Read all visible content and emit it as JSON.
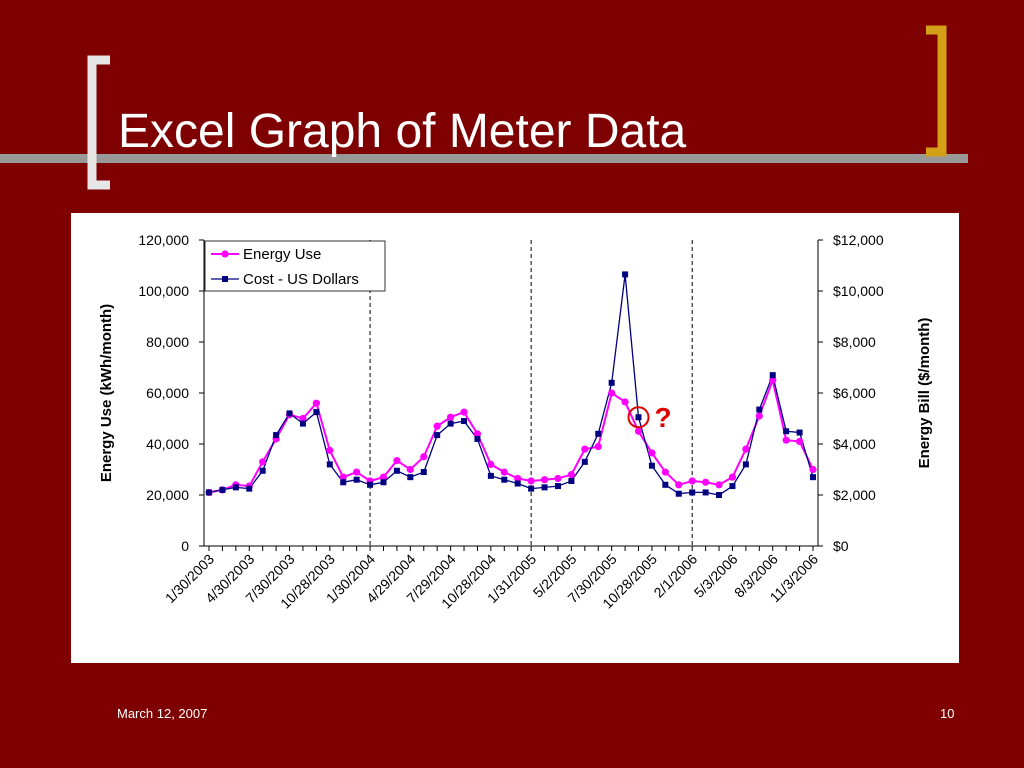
{
  "slide": {
    "title": "Excel Graph of Meter Data",
    "footer_date": "March 12, 2007",
    "page_number": "10"
  },
  "colors": {
    "background": "#7f0000",
    "bracket_left": "#e6e6e6",
    "bracket_right": "#d4a017",
    "energy_series": "#ff00ff",
    "cost_series": "#000080",
    "annotation": "#e00000"
  },
  "annotation": {
    "text": "?",
    "target_series": "Cost - US Dollars",
    "target_index": 32
  },
  "chart_data": {
    "type": "line",
    "left_axis": {
      "label": "Energy Use (kWh/month)",
      "min": 0,
      "max": 120000,
      "tick_labels": [
        "0",
        "20,000",
        "40,000",
        "60,000",
        "80,000",
        "100,000",
        "120,000"
      ]
    },
    "right_axis": {
      "label": "Energy Bill ($/month)",
      "min": 0,
      "max": 12000,
      "tick_labels": [
        "$0",
        "$2,000",
        "$4,000",
        "$6,000",
        "$8,000",
        "$10,000",
        "$12,000"
      ]
    },
    "x_tick_labels": [
      "1/30/2003",
      "4/30/2003",
      "7/30/2003",
      "10/28/2003",
      "1/30/2004",
      "4/29/2004",
      "7/29/2004",
      "10/28/2004",
      "1/31/2005",
      "5/2/2005",
      "7/30/2005",
      "10/28/2005",
      "2/1/2006",
      "5/3/2006",
      "8/3/2006",
      "11/3/2006"
    ],
    "x_range": [
      "1/30/2003",
      "12/2006"
    ],
    "year_dividers": [
      "1/30/2004",
      "1/31/2005",
      "2/1/2006"
    ],
    "legend": {
      "position": "top-left",
      "entries": [
        "Energy Use",
        "Cost - US Dollars"
      ]
    },
    "grid": false,
    "series": [
      {
        "name": "Energy Use",
        "axis": "left",
        "marker": "circle",
        "values": [
          21000,
          22000,
          24000,
          23500,
          33000,
          42000,
          51500,
          50000,
          56000,
          37500,
          27000,
          29000,
          25500,
          27000,
          33500,
          30000,
          35000,
          47000,
          50500,
          52500,
          44000,
          32000,
          29000,
          26500,
          25500,
          26000,
          26500,
          28000,
          38000,
          39000,
          60000,
          56500,
          45000,
          36500,
          29000,
          24000,
          25500,
          25000,
          24000,
          27000,
          38000,
          51000,
          65000,
          41500,
          41000,
          30000
        ]
      },
      {
        "name": "Cost - US Dollars",
        "axis": "right",
        "marker": "square",
        "values": [
          2100,
          2200,
          2300,
          2250,
          2950,
          4350,
          5200,
          4800,
          5250,
          3200,
          2500,
          2600,
          2400,
          2500,
          2950,
          2700,
          2900,
          4350,
          4800,
          4900,
          4200,
          2750,
          2600,
          2450,
          2250,
          2300,
          2350,
          2550,
          3300,
          4400,
          6400,
          10650,
          5050,
          3150,
          2400,
          2050,
          2100,
          2100,
          2000,
          2350,
          3200,
          5350,
          6700,
          4500,
          4450,
          2700
        ]
      }
    ]
  }
}
